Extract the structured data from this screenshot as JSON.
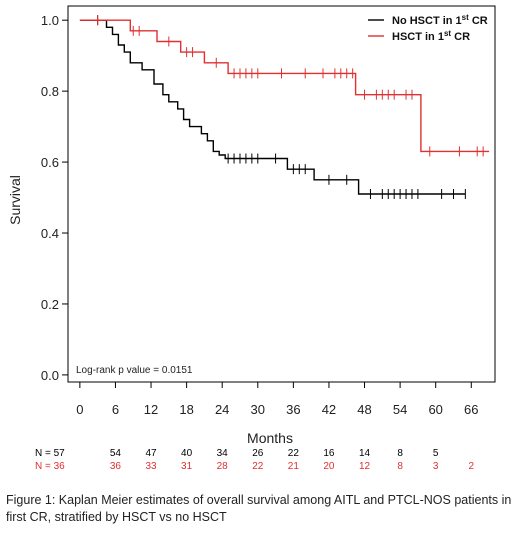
{
  "chart_data": {
    "type": "line",
    "subtype": "kaplan-meier",
    "xlabel": "Months",
    "ylabel": "Survival",
    "xlim": [
      -2,
      70
    ],
    "ylim": [
      -0.02,
      1.04
    ],
    "xticks": [
      0,
      6,
      12,
      18,
      24,
      30,
      36,
      42,
      48,
      54,
      60,
      66
    ],
    "yticks": [
      0.0,
      0.2,
      0.4,
      0.6,
      0.8,
      1.0
    ],
    "ytick_labels": [
      "0.0",
      "0.2",
      "0.4",
      "0.6",
      "0.8",
      "1.0"
    ],
    "grid": false,
    "legend_position": "top-right",
    "annotation": "Log-rank p value =  0.0151",
    "series": [
      {
        "name": "No HSCT in 1st CR",
        "legend_main": "No HSCT in 1",
        "legend_sup": "st",
        "legend_tail": " CR",
        "color": "#000000",
        "steps": [
          [
            0,
            1.0
          ],
          [
            4.5,
            0.98
          ],
          [
            5.5,
            0.96
          ],
          [
            6.5,
            0.93
          ],
          [
            7.5,
            0.91
          ],
          [
            8.5,
            0.88
          ],
          [
            10.5,
            0.86
          ],
          [
            12.5,
            0.82
          ],
          [
            14,
            0.79
          ],
          [
            15,
            0.77
          ],
          [
            16.5,
            0.75
          ],
          [
            17.5,
            0.72
          ],
          [
            18.5,
            0.7
          ],
          [
            20.5,
            0.68
          ],
          [
            21.5,
            0.66
          ],
          [
            22.5,
            0.63
          ],
          [
            23.5,
            0.62
          ],
          [
            24.5,
            0.61
          ],
          [
            35,
            0.58
          ],
          [
            39.5,
            0.55
          ],
          [
            47,
            0.51
          ],
          [
            65,
            0.51
          ]
        ],
        "censors": [
          [
            3,
            1.0
          ],
          [
            25,
            0.61
          ],
          [
            26,
            0.61
          ],
          [
            27,
            0.61
          ],
          [
            28,
            0.61
          ],
          [
            29,
            0.61
          ],
          [
            30,
            0.61
          ],
          [
            33,
            0.61
          ],
          [
            36,
            0.58
          ],
          [
            37,
            0.58
          ],
          [
            38,
            0.58
          ],
          [
            42,
            0.55
          ],
          [
            45,
            0.55
          ],
          [
            49,
            0.51
          ],
          [
            51,
            0.51
          ],
          [
            52,
            0.51
          ],
          [
            53,
            0.51
          ],
          [
            54,
            0.51
          ],
          [
            55,
            0.51
          ],
          [
            56,
            0.51
          ],
          [
            57,
            0.51
          ],
          [
            61,
            0.51
          ],
          [
            63,
            0.51
          ],
          [
            65,
            0.51
          ]
        ]
      },
      {
        "name": "HSCT in 1st CR",
        "legend_main": "HSCT in 1",
        "legend_sup": "st",
        "legend_tail": " CR",
        "color": "#e03030",
        "steps": [
          [
            0,
            1.0
          ],
          [
            8.5,
            0.97
          ],
          [
            13,
            0.94
          ],
          [
            17,
            0.91
          ],
          [
            21,
            0.88
          ],
          [
            25,
            0.85
          ],
          [
            46.5,
            0.79
          ],
          [
            57.5,
            0.63
          ],
          [
            69,
            0.63
          ]
        ],
        "censors": [
          [
            3,
            1.0
          ],
          [
            9,
            0.97
          ],
          [
            10,
            0.97
          ],
          [
            15,
            0.94
          ],
          [
            18,
            0.91
          ],
          [
            19,
            0.91
          ],
          [
            23,
            0.88
          ],
          [
            26,
            0.85
          ],
          [
            27,
            0.85
          ],
          [
            28,
            0.85
          ],
          [
            29,
            0.85
          ],
          [
            30,
            0.85
          ],
          [
            34,
            0.85
          ],
          [
            38,
            0.85
          ],
          [
            41,
            0.85
          ],
          [
            43,
            0.85
          ],
          [
            44,
            0.85
          ],
          [
            45,
            0.85
          ],
          [
            46,
            0.85
          ],
          [
            48,
            0.79
          ],
          [
            50,
            0.79
          ],
          [
            51,
            0.79
          ],
          [
            52,
            0.79
          ],
          [
            53,
            0.79
          ],
          [
            55,
            0.79
          ],
          [
            56,
            0.79
          ],
          [
            59,
            0.63
          ],
          [
            64,
            0.63
          ],
          [
            67,
            0.63
          ],
          [
            68,
            0.63
          ]
        ]
      }
    ],
    "risk_table": {
      "times": [
        0,
        6,
        12,
        18,
        24,
        30,
        36,
        42,
        48,
        54,
        60,
        66
      ],
      "rows": [
        {
          "label": "N = 57",
          "color": "#000000",
          "counts": [
            "",
            "54",
            "47",
            "40",
            "34",
            "26",
            "22",
            "16",
            "14",
            "8",
            "5",
            ""
          ]
        },
        {
          "label": "N = 36",
          "color": "#e03030",
          "counts": [
            "",
            "36",
            "33",
            "31",
            "28",
            "22",
            "21",
            "20",
            "12",
            "8",
            "3",
            "2"
          ]
        }
      ]
    }
  },
  "caption": "Figure 1: Kaplan Meier estimates of overall survival among AITL and PTCL-NOS patients in first CR, stratified by HSCT vs no HSCT"
}
